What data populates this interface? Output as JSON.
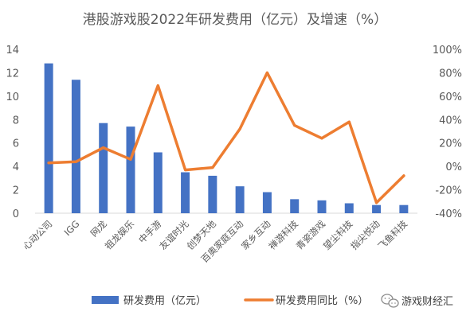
{
  "chart_data": {
    "type": "bar",
    "title": "港股游戏股2022年研发费用（亿元）及增速（%）",
    "categories": [
      "心动公司",
      "IGG",
      "网龙",
      "祖龙娱乐",
      "中手游",
      "友谊时光",
      "创梦天地",
      "百奥家庭互动",
      "家乡互动",
      "禅游科技",
      "青瓷游戏",
      "望尘科技",
      "指尖悦动",
      "飞鱼科技"
    ],
    "series": [
      {
        "name": "研发费用（亿元）",
        "kind": "bar",
        "axis": "left",
        "color": "#4472C4",
        "values": [
          12.8,
          11.4,
          7.7,
          7.4,
          5.2,
          3.5,
          3.2,
          2.3,
          1.8,
          1.2,
          1.1,
          0.85,
          0.7,
          0.7
        ]
      },
      {
        "name": "研发费用同比（%）",
        "kind": "line",
        "axis": "right",
        "color": "#ED7D31",
        "values": [
          3,
          4,
          16,
          6,
          69,
          -3,
          -1,
          32,
          80,
          35,
          24,
          38,
          -31,
          -8
        ]
      }
    ],
    "y_left": {
      "min": 0,
      "max": 14,
      "step": 2,
      "tick_labels": [
        "0",
        "2",
        "4",
        "6",
        "8",
        "10",
        "12",
        "14"
      ]
    },
    "y_right": {
      "min": -40,
      "max": 100,
      "step": 20,
      "tick_labels": [
        "-40%",
        "-20%",
        "0%",
        "20%",
        "40%",
        "60%",
        "80%",
        "100%"
      ]
    },
    "grid": false,
    "legend": "bottom"
  },
  "watermark": {
    "text": "游戏财经汇",
    "icon": "wechat-icon"
  }
}
